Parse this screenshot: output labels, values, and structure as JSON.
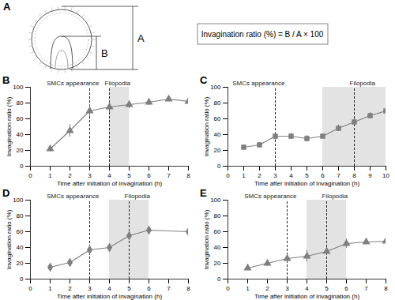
{
  "diagram": {
    "panel": "A",
    "dimensions": [
      "A",
      "B"
    ],
    "formula": "Invagination ratio (%) = B / A × 100"
  },
  "chart_data": [
    {
      "type": "line",
      "title": "B",
      "x_label": "Time after initiation of invagination (h)",
      "y_label": "Invagination ratio (%)",
      "x": [
        1,
        2,
        3,
        4,
        5,
        6,
        7,
        8
      ],
      "values": [
        22,
        45,
        70,
        75,
        78,
        81,
        85,
        82
      ],
      "errors": [
        4,
        8,
        8,
        8,
        5,
        4,
        2,
        4
      ],
      "color": "#7f7f7f",
      "marker": "triangle",
      "line_style": "solid",
      "xlim": [
        0,
        8
      ],
      "xticks": [
        0,
        1,
        2,
        3,
        4,
        5,
        6,
        7,
        8
      ],
      "ylim": [
        0,
        100
      ],
      "yticks": [
        0,
        20,
        40,
        60,
        80,
        100
      ],
      "shaded_range": [
        4,
        5
      ],
      "annotations": [
        {
          "x": 3,
          "text": "SMCs appearance"
        },
        {
          "x": 4,
          "text": "Filopodia"
        }
      ]
    },
    {
      "type": "line",
      "title": "C",
      "x_label": "Time after initiation of invagination (h)",
      "y_label": "Invagination ratio (%)",
      "x": [
        1,
        2,
        3,
        4,
        5,
        6,
        7,
        8,
        9,
        10
      ],
      "values": [
        24,
        27,
        38,
        38,
        35,
        38,
        48,
        56,
        64,
        70
      ],
      "errors": [
        3,
        3,
        5,
        4,
        4,
        3,
        4,
        4,
        4,
        4
      ],
      "color": "#7f7f7f",
      "marker": "square",
      "line_style": "solid",
      "xlim": [
        0,
        10
      ],
      "xticks": [
        0,
        1,
        2,
        3,
        4,
        5,
        6,
        7,
        8,
        9,
        10
      ],
      "ylim": [
        0,
        100
      ],
      "yticks": [
        0,
        20,
        40,
        60,
        80,
        100
      ],
      "shaded_range": [
        6,
        10
      ],
      "annotations": [
        {
          "x": 3,
          "text": "SMCs appearance"
        },
        {
          "x": 8,
          "text": "Filopodia"
        }
      ]
    },
    {
      "type": "line",
      "title": "D",
      "x_label": "Time after initiation of invagination (h)",
      "y_label": "Invagination ratio (%)",
      "x": [
        1,
        2,
        3,
        4,
        5,
        6,
        8
      ],
      "values": [
        15,
        21,
        37,
        40,
        55,
        62,
        60
      ],
      "errors": [
        1,
        1,
        1,
        1,
        6,
        1,
        1
      ],
      "color": "#7f7f7f",
      "marker": "diamond",
      "line_style": "solid",
      "xlim": [
        0,
        8
      ],
      "xticks": [
        0,
        1,
        2,
        3,
        4,
        5,
        6,
        7,
        8
      ],
      "ylim": [
        0,
        100
      ],
      "yticks": [
        0,
        20,
        40,
        60,
        80,
        100
      ],
      "shaded_range": [
        4,
        6
      ],
      "annotations": [
        {
          "x": 3,
          "text": "SMCs appearance"
        },
        {
          "x": 5,
          "text": "Filopodia"
        }
      ]
    },
    {
      "type": "line",
      "title": "E",
      "x_label": "Time after initiation of invagination (h)",
      "y_label": "Invagination ratio (%)",
      "x": [
        1,
        2,
        3,
        4,
        5,
        6,
        7,
        8
      ],
      "values": [
        14,
        20,
        26,
        29,
        35,
        45,
        47,
        48
      ],
      "errors": [
        3,
        4,
        5,
        7,
        5,
        6,
        3,
        4
      ],
      "color": "#7f7f7f",
      "marker": "triangle",
      "line_style": "solid",
      "xlim": [
        0,
        8
      ],
      "xticks": [
        0,
        1,
        2,
        3,
        4,
        5,
        6,
        7,
        8
      ],
      "ylim": [
        0,
        100
      ],
      "yticks": [
        0,
        20,
        40,
        60,
        80,
        100
      ],
      "shaded_range": [
        4,
        6
      ],
      "annotations": [
        {
          "x": 3,
          "text": "SMCs appearance"
        },
        {
          "x": 5,
          "text": "Filopodia"
        }
      ]
    }
  ]
}
